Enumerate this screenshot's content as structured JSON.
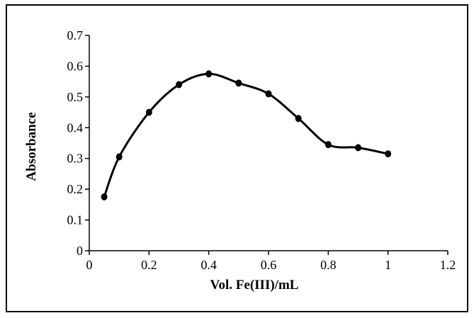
{
  "chart_data": {
    "type": "line",
    "title": "",
    "xlabel": "Vol. Fe(III)/mL",
    "ylabel": "Absorbance",
    "xlim": [
      0,
      1.2
    ],
    "ylim": [
      0,
      0.7
    ],
    "x_ticks": [
      "0",
      "0.2",
      "0.4",
      "0.6",
      "0.8",
      "1",
      "1.2"
    ],
    "y_ticks": [
      "0",
      "0.1",
      "0.2",
      "0.3",
      "0.4",
      "0.5",
      "0.6",
      "0.7"
    ],
    "grid": false,
    "legend": "none",
    "smoothed": true,
    "marker": "circle",
    "color": "#000000",
    "series": [
      {
        "x": [
          0.05,
          0.1,
          0.2,
          0.3,
          0.4,
          0.5,
          0.6,
          0.7,
          0.8,
          0.9,
          1.0
        ],
        "y": [
          0.175,
          0.305,
          0.45,
          0.54,
          0.575,
          0.545,
          0.51,
          0.43,
          0.345,
          0.335,
          0.315
        ]
      }
    ]
  }
}
